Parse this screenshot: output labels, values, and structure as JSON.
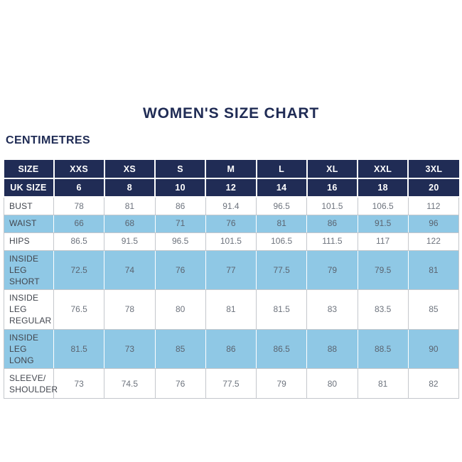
{
  "title": "WOMEN'S SIZE CHART",
  "unit_label": "CENTIMETRES",
  "colors": {
    "navy": "#202c55",
    "light_blue": "#8fc8e5",
    "value_text": "#6d737d",
    "label_text": "#42464e",
    "grid_border": "#c4c7cc",
    "background": "#ffffff"
  },
  "chart_data": {
    "type": "table",
    "title": "WOMEN'S SIZE CHART",
    "unit": "CENTIMETRES",
    "header_rows": [
      {
        "label": "SIZE",
        "values": [
          "XXS",
          "XS",
          "S",
          "M",
          "L",
          "XL",
          "XXL",
          "3XL"
        ]
      },
      {
        "label": "UK SIZE",
        "values": [
          "6",
          "8",
          "10",
          "12",
          "14",
          "16",
          "18",
          "20"
        ]
      }
    ],
    "rows": [
      {
        "label": "BUST",
        "values": [
          "78",
          "81",
          "86",
          "91.4",
          "96.5",
          "101.5",
          "106.5",
          "112"
        ],
        "shaded": false,
        "size": "single"
      },
      {
        "label": "WAIST",
        "values": [
          "66",
          "68",
          "71",
          "76",
          "81",
          "86",
          "91.5",
          "96"
        ],
        "shaded": true,
        "size": "single"
      },
      {
        "label": "HIPS",
        "values": [
          "86.5",
          "91.5",
          "96.5",
          "101.5",
          "106.5",
          "111.5",
          "117",
          "122"
        ],
        "shaded": false,
        "size": "single"
      },
      {
        "label": "INSIDE LEG SHORT",
        "values": [
          "72.5",
          "74",
          "76",
          "77",
          "77.5",
          "79",
          "79.5",
          "81"
        ],
        "shaded": true,
        "size": "tall"
      },
      {
        "label": "INSIDE LEG REGULAR",
        "values": [
          "76.5",
          "78",
          "80",
          "81",
          "81.5",
          "83",
          "83.5",
          "85"
        ],
        "shaded": false,
        "size": "tall"
      },
      {
        "label": "INSIDE LEG LONG",
        "values": [
          "81.5",
          "73",
          "85",
          "86",
          "86.5",
          "88",
          "88.5",
          "90"
        ],
        "shaded": true,
        "size": "tall"
      },
      {
        "label": "SLEEVE/ SHOULDER",
        "values": [
          "73",
          "74.5",
          "76",
          "77.5",
          "79",
          "80",
          "81",
          "82"
        ],
        "shaded": false,
        "size": "tallest"
      }
    ]
  }
}
